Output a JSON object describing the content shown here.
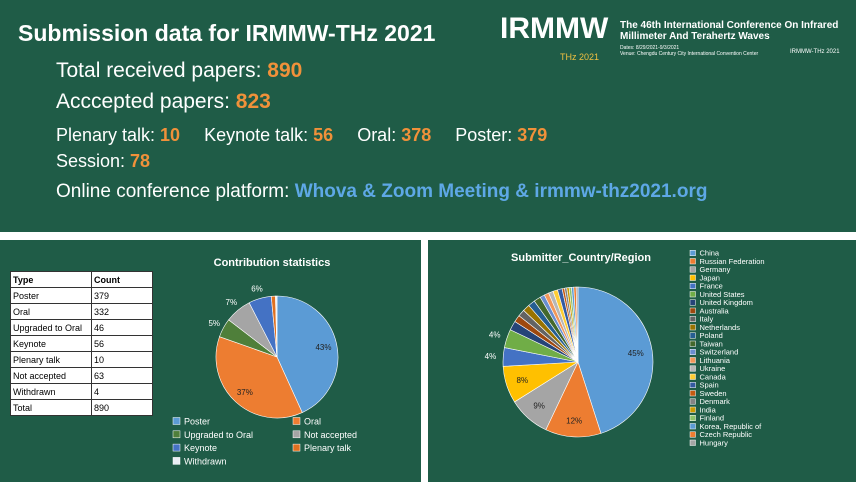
{
  "header": {
    "title": "Submission data for IRMMW-THz 2021",
    "total": {
      "label": "Total received papers: ",
      "value": "890"
    },
    "accepted": {
      "label": "Acccepted papers: ",
      "value": "823"
    },
    "talks": [
      {
        "label": "Plenary talk: ",
        "value": "10"
      },
      {
        "label": "Keynote talk: ",
        "value": "56"
      },
      {
        "label": "Oral: ",
        "value": "378"
      },
      {
        "label": "Poster: ",
        "value": "379"
      }
    ],
    "session": {
      "label": "Session: ",
      "value": "78"
    },
    "platform": {
      "label": "Online conference platform: ",
      "value": "Whova & Zoom Meeting & irmmw-thz2021.org"
    }
  },
  "logo": {
    "name": "IRMMW",
    "sub": "THz 2021",
    "lines": [
      "The 46th International Conference On Infrared",
      "Millimeter And Terahertz Waves"
    ],
    "dates": "Dates: 8/29/2021-9/3/2021",
    "venue": "Venue: Chengdu Century City International Convention Center",
    "mini": "IRMMW-THz 2021"
  },
  "table": {
    "header": [
      "Type",
      "Count"
    ],
    "rows": [
      [
        "Poster",
        "379"
      ],
      [
        "Oral",
        "332"
      ],
      [
        "Upgraded to Oral",
        "46"
      ],
      [
        "Keynote",
        "56"
      ],
      [
        "Plenary talk",
        "10"
      ],
      [
        "Not accepted",
        "63"
      ],
      [
        "Withdrawn",
        "4"
      ],
      [
        "Total",
        "890"
      ]
    ]
  },
  "chart_data": [
    {
      "type": "pie",
      "title": "Contribution statistics",
      "categories": [
        "Poster",
        "Oral",
        "Upgraded to Oral",
        "Not accepted",
        "Keynote",
        "Plenary talk",
        "Withdrawn"
      ],
      "values": [
        43,
        37,
        5,
        7,
        6,
        1.1,
        0.4
      ],
      "value_labels": [
        "43%",
        "37%",
        "5%",
        "7%",
        "6%",
        null,
        null
      ],
      "colors": [
        "#5b9bd5",
        "#ed7d31",
        "#4f7f3a",
        "#a5a5a5",
        "#4472c4",
        "#e07020",
        "#e8eef4"
      ],
      "legend": "bottom"
    },
    {
      "type": "pie",
      "title": "Submitter_Country/Region",
      "categories": [
        "China",
        "Russian Federation",
        "Germany",
        "Japan",
        "France",
        "United States",
        "United Kingdom",
        "Australia",
        "Italy",
        "Netherlands",
        "Poland",
        "Taiwan",
        "Switzerland",
        "Lithuania",
        "Ukraine",
        "Canada",
        "Spain",
        "Sweden",
        "Denmark",
        "India",
        "Finland",
        "Korea, Republic of",
        "Czech Republic",
        "Hungary"
      ],
      "values": [
        45,
        12,
        9,
        8,
        4,
        4,
        2,
        1.5,
        1.5,
        1.5,
        1.5,
        1.5,
        1,
        1,
        1,
        1,
        1,
        0.5,
        0.5,
        0.5,
        0.5,
        0.5,
        0.5,
        0.4
      ],
      "value_labels": [
        "45%",
        "12%",
        "9%",
        "8%",
        "4%",
        "4%",
        null,
        null,
        null,
        null,
        null,
        null,
        null,
        null,
        null,
        null,
        null,
        null,
        null,
        null,
        null,
        null,
        null,
        null
      ],
      "colors": [
        "#5b9bd5",
        "#ed7d31",
        "#a5a5a5",
        "#ffc000",
        "#4472c4",
        "#70ad47",
        "#264478",
        "#9e480e",
        "#636363",
        "#997300",
        "#255e91",
        "#43682b",
        "#698ed0",
        "#f1975a",
        "#b7b7b7",
        "#ffcd33",
        "#335aa1",
        "#c55a11",
        "#848484",
        "#cc9a00",
        "#8cc168",
        "#5b9bd5",
        "#ed7d31",
        "#a5a5a5"
      ],
      "legend": "right"
    }
  ]
}
